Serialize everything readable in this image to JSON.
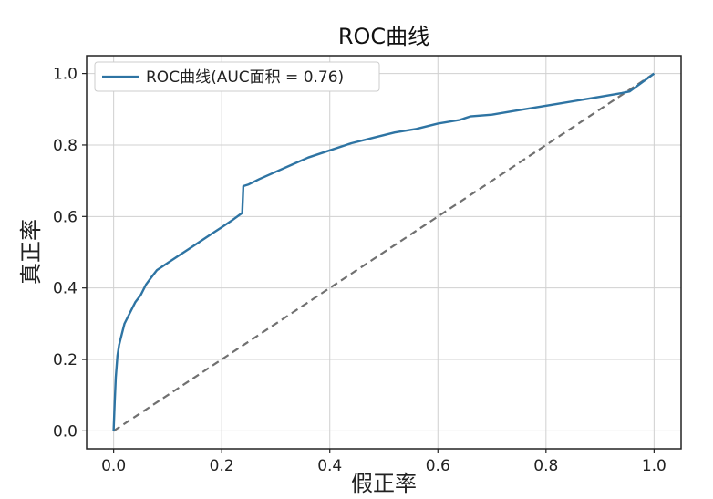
{
  "chart_data": {
    "type": "line",
    "title": "ROC曲线",
    "xlabel": "假正率",
    "ylabel": "真正率",
    "xlim": [
      -0.05,
      1.05
    ],
    "ylim": [
      -0.05,
      1.05
    ],
    "x_ticks": [
      "0.0",
      "0.2",
      "0.4",
      "0.6",
      "0.8",
      "1.0"
    ],
    "y_ticks": [
      "0.0",
      "0.2",
      "0.4",
      "0.6",
      "0.8",
      "1.0"
    ],
    "grid": true,
    "legend_position": "top-left",
    "colors": {
      "roc": "#2e74a3",
      "diagonal": "#707070",
      "grid": "#d0d0d0"
    },
    "series": [
      {
        "name": "ROC曲线(AUC面积 = 0.76)",
        "style": "solid",
        "x": [
          0.0,
          0.002,
          0.004,
          0.007,
          0.01,
          0.015,
          0.02,
          0.03,
          0.04,
          0.05,
          0.06,
          0.07,
          0.08,
          0.1,
          0.12,
          0.14,
          0.16,
          0.18,
          0.2,
          0.22,
          0.238,
          0.24,
          0.25,
          0.27,
          0.3,
          0.33,
          0.36,
          0.4,
          0.44,
          0.48,
          0.52,
          0.56,
          0.6,
          0.64,
          0.66,
          0.7,
          0.74,
          0.78,
          0.82,
          0.86,
          0.9,
          0.94,
          0.955,
          1.0
        ],
        "y": [
          0.0,
          0.08,
          0.15,
          0.21,
          0.24,
          0.27,
          0.3,
          0.33,
          0.36,
          0.38,
          0.41,
          0.43,
          0.45,
          0.47,
          0.49,
          0.51,
          0.53,
          0.55,
          0.57,
          0.59,
          0.61,
          0.685,
          0.69,
          0.705,
          0.725,
          0.745,
          0.765,
          0.785,
          0.805,
          0.82,
          0.835,
          0.845,
          0.86,
          0.87,
          0.88,
          0.885,
          0.895,
          0.905,
          0.915,
          0.925,
          0.935,
          0.945,
          0.95,
          1.0
        ]
      },
      {
        "name": "",
        "style": "dashed",
        "x": [
          0.0,
          1.0
        ],
        "y": [
          0.0,
          1.0
        ]
      }
    ]
  }
}
